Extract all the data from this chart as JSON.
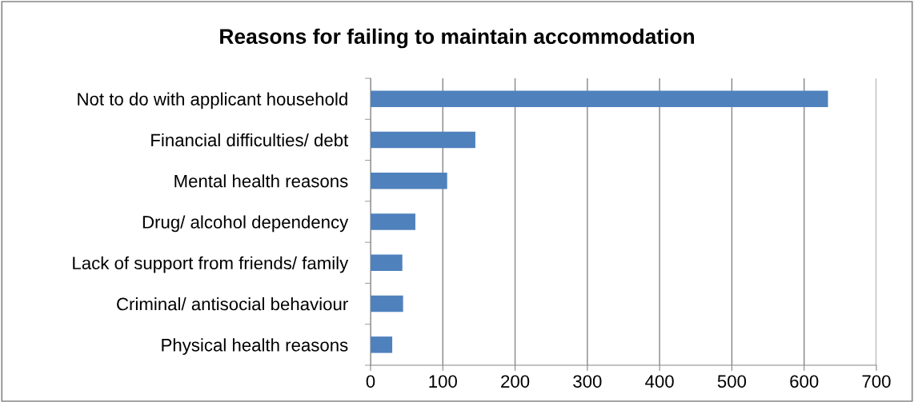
{
  "chart_data": {
    "type": "bar",
    "orientation": "horizontal",
    "title": "Reasons for failing to maintain accommodation",
    "categories": [
      "Not to do with applicant household",
      "Financial difficulties/ debt",
      "Mental health reasons",
      "Drug/ alcohol dependency",
      "Lack of support from friends/ family",
      "Criminal/ antisocial behaviour",
      "Physical health reasons"
    ],
    "values": [
      633,
      145,
      106,
      62,
      44,
      45,
      30
    ],
    "color": "#4f81bd",
    "xlim": [
      0,
      700
    ],
    "xticks": [
      0,
      100,
      200,
      300,
      400,
      500,
      600,
      700
    ],
    "grid": "x"
  }
}
